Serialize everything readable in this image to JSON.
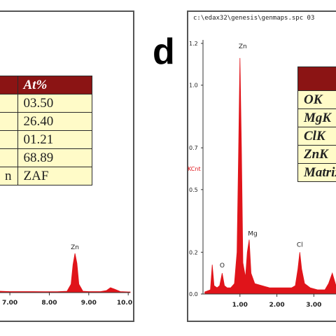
{
  "panel_c": {
    "table": {
      "header": "At%",
      "rows": [
        "03.50",
        "26.40",
        "01.21",
        "68.89",
        "ZAF"
      ],
      "left_partial": "n"
    }
  },
  "panel_d": {
    "letter": "d",
    "path": "c:\\edax32\\genesis\\genmaps.spc  03",
    "table": {
      "rows": [
        "OK",
        "MgK",
        "ClK",
        "ZnK",
        "Matrix"
      ]
    }
  },
  "colors": {
    "spectrum": "#e0141a",
    "table_header": "#8b1414",
    "table_bg": "#fffbc8"
  },
  "chart_data": [
    {
      "type": "line",
      "panel": "c",
      "xlabel": "",
      "ylabel": "",
      "x_ticks": [
        "7.00",
        "8.00",
        "9.00",
        "10.0"
      ],
      "xlim": [
        6.75,
        10.05
      ],
      "ylim": [
        0,
        1.0
      ],
      "annotations": [
        {
          "text": "Zn",
          "x": 8.65
        }
      ],
      "x": [
        6.75,
        7.0,
        7.3,
        7.6,
        7.9,
        8.2,
        8.45,
        8.55,
        8.6,
        8.65,
        8.7,
        8.75,
        8.85,
        9.0,
        9.3,
        9.45,
        9.55,
        9.65,
        9.8,
        10.0,
        10.05
      ],
      "y": [
        0.02,
        0.015,
        0.015,
        0.015,
        0.014,
        0.013,
        0.02,
        0.12,
        0.4,
        0.56,
        0.42,
        0.12,
        0.02,
        0.015,
        0.015,
        0.03,
        0.07,
        0.05,
        0.015,
        0.01,
        0.01
      ]
    },
    {
      "type": "line",
      "panel": "d",
      "ylabel": "KCnt",
      "y_ticks": [
        "1.2",
        "1.0",
        "0.7",
        "0.5",
        "0.2",
        "0.0"
      ],
      "x_ticks": [
        "1.00",
        "2.00",
        "3.00"
      ],
      "xlim": [
        0,
        3.6
      ],
      "ylim": [
        0,
        1.2
      ],
      "annotations": [
        {
          "text": "Zn",
          "x": 1.0
        },
        {
          "text": "O",
          "x": 0.52
        },
        {
          "text": "Mg",
          "x": 1.25
        },
        {
          "text": "Cl",
          "x": 2.62
        }
      ],
      "x": [
        0.05,
        0.2,
        0.25,
        0.3,
        0.38,
        0.45,
        0.52,
        0.58,
        0.65,
        0.75,
        0.85,
        0.92,
        0.96,
        1.0,
        1.04,
        1.08,
        1.15,
        1.2,
        1.25,
        1.3,
        1.4,
        1.6,
        1.8,
        2.0,
        2.2,
        2.4,
        2.5,
        2.57,
        2.62,
        2.67,
        2.75,
        2.9,
        3.1,
        3.3,
        3.4,
        3.5,
        3.6
      ],
      "y": [
        0.01,
        0.02,
        0.14,
        0.04,
        0.03,
        0.04,
        0.1,
        0.04,
        0.03,
        0.03,
        0.05,
        0.2,
        0.65,
        1.13,
        0.7,
        0.15,
        0.08,
        0.2,
        0.26,
        0.1,
        0.05,
        0.04,
        0.03,
        0.03,
        0.03,
        0.03,
        0.04,
        0.12,
        0.2,
        0.12,
        0.05,
        0.03,
        0.02,
        0.02,
        0.05,
        0.1,
        0.04
      ]
    }
  ]
}
